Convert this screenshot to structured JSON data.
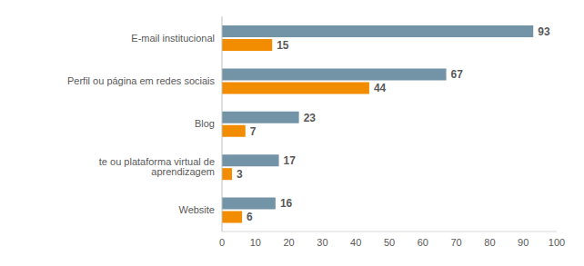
{
  "chart_data": {
    "type": "bar",
    "orientation": "horizontal",
    "categories": [
      "E-mail institucional",
      "Perfil ou página em redes sociais",
      "Blog",
      "te ou plataforma virtual de aprendizagem",
      "Website"
    ],
    "series": [
      {
        "color": "#7393a7",
        "values": [
          93,
          67,
          23,
          17,
          16
        ]
      },
      {
        "color": "#f28c00",
        "values": [
          15,
          44,
          7,
          3,
          6
        ]
      }
    ],
    "xlim": [
      0,
      100
    ],
    "xticks": [
      0,
      10,
      20,
      30,
      40,
      50,
      60,
      70,
      80,
      90,
      100
    ],
    "grid": false,
    "data_labels": true
  }
}
